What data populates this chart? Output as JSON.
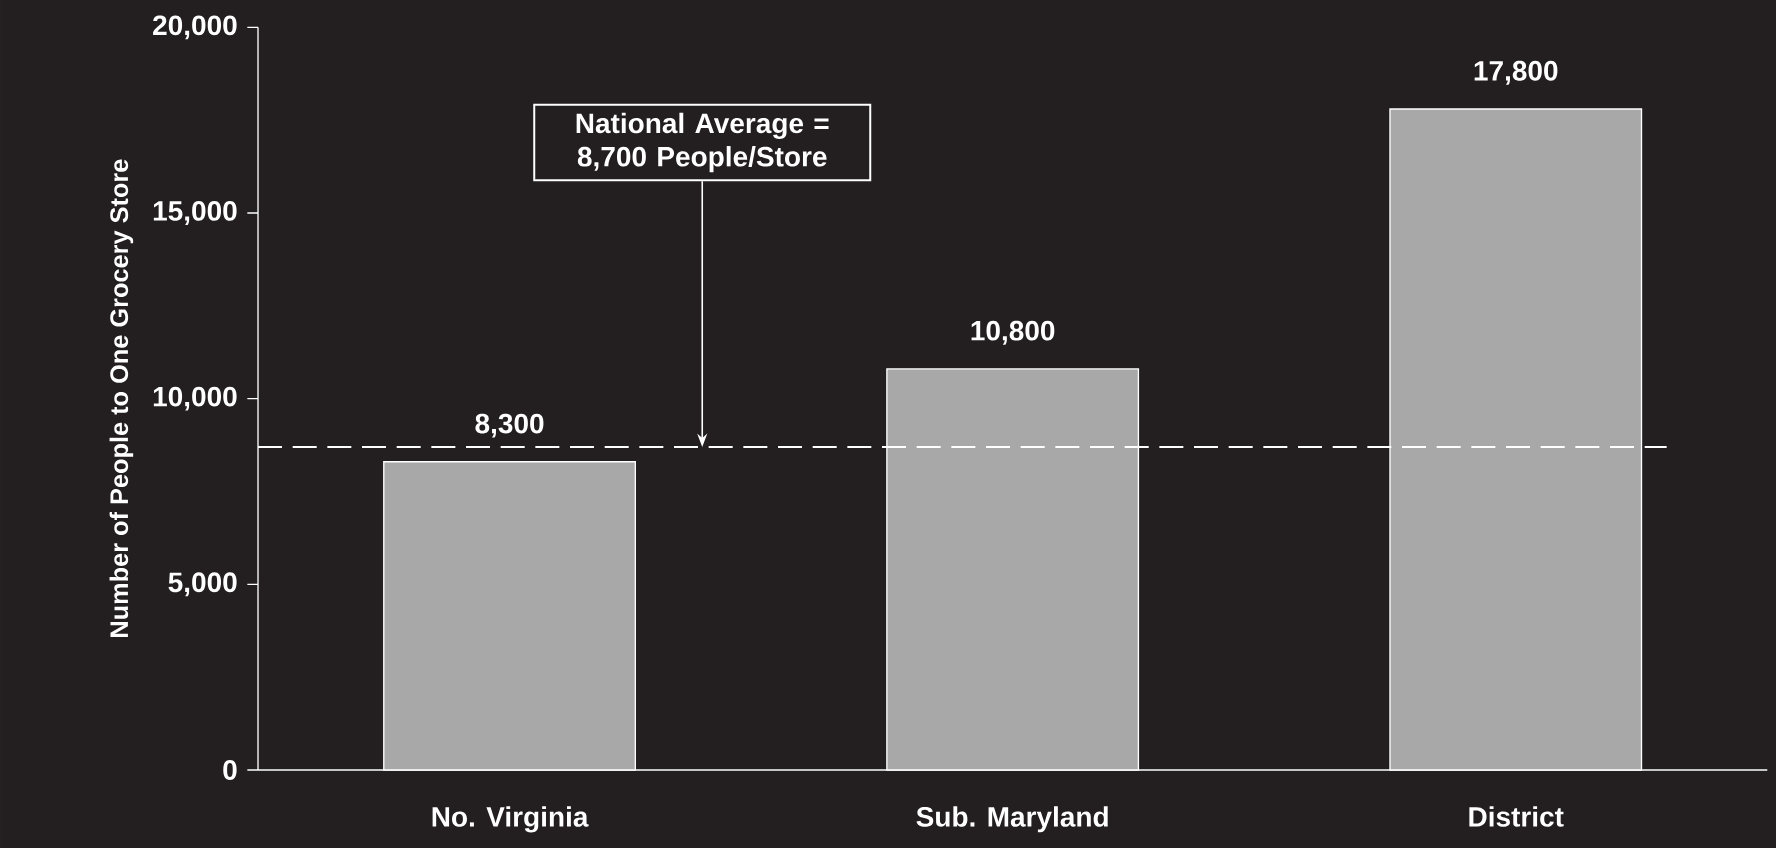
{
  "chart_data": {
    "type": "bar",
    "ylabel": "Number of People to One Grocery Store",
    "categories": [
      "No. Virginia",
      "Sub. Maryland",
      "District"
    ],
    "values": [
      8300,
      10800,
      17800
    ],
    "value_labels": [
      "8,300",
      "10,800",
      "17,800"
    ],
    "color": "#a8a8a8",
    "ylim": [
      0,
      20000
    ],
    "yticks": [
      {
        "value": 0,
        "label": "0"
      },
      {
        "value": 5000,
        "label": "5,000"
      },
      {
        "value": 10000,
        "label": "10,000"
      },
      {
        "value": 15000,
        "label": "15,000"
      },
      {
        "value": 20000,
        "label": "20,000"
      }
    ],
    "ref_lines": [
      {
        "axis": "y",
        "value": 8700,
        "label": "National Average = 8,700 People/Store",
        "color": "#ffffff",
        "line_style": "dashed"
      }
    ]
  }
}
